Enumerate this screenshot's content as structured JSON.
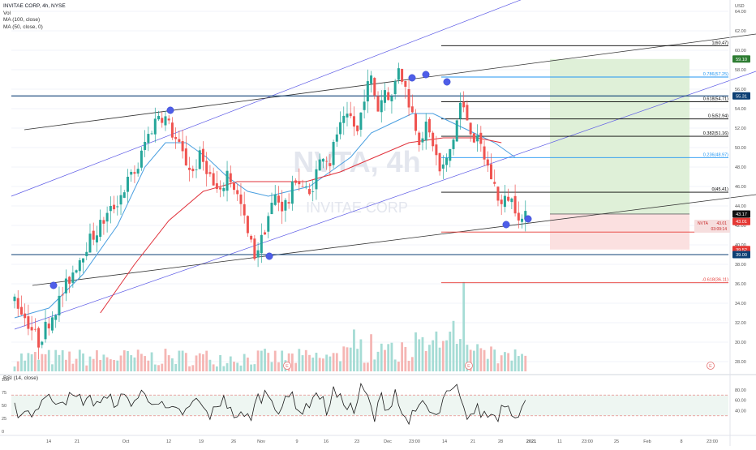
{
  "header": {
    "symbol_line": "INVITAE CORP, 4h, NYSE",
    "vol_label": "Vol",
    "ma100_label": "MA (100, close)",
    "ma50_label": "MA (50, close, 0)",
    "rsi_label": "RSI (14, close)",
    "currency": "USD",
    "watermark_ticker": "NVTA, 4h",
    "watermark_name": "INVITAE CORP"
  },
  "colors": {
    "up": "#26a69a",
    "down": "#ef5350",
    "ma50": "#4a9fe0",
    "ma100": "#e0303a",
    "channel": "#5e5ce6",
    "level": "#0c3f74",
    "fib_black": "#000000",
    "fib_blue": "#2196f3",
    "fib_red": "#e53935",
    "target_zone": "#dff0d8",
    "stop_zone": "#fbe0e0"
  },
  "chart_data": {
    "type": "candlestick",
    "symbol": "INVITAE CORP",
    "timeframe": "4h",
    "exchange": "NYSE",
    "price_axis": {
      "ylim": [
        27.0,
        64.5
      ],
      "ticks": [
        "64.00",
        "62.00",
        "60.00",
        "58.00",
        "56.00",
        "54.00",
        "52.00",
        "50.00",
        "48.00",
        "46.00",
        "44.00",
        "42.00",
        "40.00",
        "38.00",
        "36.00",
        "34.00",
        "32.00",
        "30.00",
        "28.00"
      ]
    },
    "time_axis": {
      "ticks": [
        "14",
        "21",
        "Oct",
        "12",
        "19",
        "26",
        "Nov",
        "9",
        "16",
        "23",
        "Dec",
        "23:00",
        "14",
        "21",
        "28",
        "2021",
        "11",
        "23:00",
        "25",
        "Feb",
        "8",
        "23:00"
      ]
    },
    "price_path": [
      [
        0,
        34.5
      ],
      [
        4,
        32.0
      ],
      [
        7,
        30.0
      ],
      [
        9,
        31.5
      ],
      [
        12,
        33.5
      ],
      [
        15,
        35.8
      ],
      [
        18,
        38.0
      ],
      [
        21,
        40.0
      ],
      [
        24,
        41.5
      ],
      [
        27,
        43.0
      ],
      [
        30,
        44.5
      ],
      [
        33,
        46.5
      ],
      [
        36,
        48.0
      ],
      [
        38,
        50.5
      ],
      [
        40,
        52.0
      ],
      [
        42,
        53.5
      ],
      [
        44,
        53.0
      ],
      [
        46,
        51.5
      ],
      [
        48,
        50.0
      ],
      [
        50,
        48.5
      ],
      [
        52,
        47.5
      ],
      [
        54,
        49.0
      ],
      [
        56,
        48.0
      ],
      [
        58,
        46.0
      ],
      [
        60,
        45.0
      ],
      [
        62,
        47.5
      ],
      [
        64,
        46.0
      ],
      [
        66,
        44.0
      ],
      [
        68,
        41.0
      ],
      [
        70,
        39.0
      ],
      [
        72,
        40.5
      ],
      [
        74,
        43.0
      ],
      [
        76,
        45.0
      ],
      [
        78,
        44.0
      ],
      [
        80,
        44.5
      ],
      [
        82,
        47.0
      ],
      [
        84,
        46.0
      ],
      [
        86,
        45.0
      ],
      [
        88,
        47.5
      ],
      [
        90,
        49.5
      ],
      [
        92,
        48.5
      ],
      [
        94,
        51.5
      ],
      [
        96,
        52.5
      ],
      [
        98,
        53.0
      ],
      [
        100,
        51.5
      ],
      [
        102,
        55.5
      ],
      [
        104,
        57.0
      ],
      [
        106,
        54.0
      ],
      [
        108,
        56.0
      ],
      [
        110,
        55.0
      ],
      [
        112,
        58.5
      ],
      [
        114,
        56.0
      ],
      [
        116,
        53.5
      ],
      [
        118,
        51.0
      ],
      [
        120,
        52.0
      ],
      [
        122,
        50.5
      ],
      [
        124,
        47.5
      ],
      [
        126,
        48.5
      ],
      [
        128,
        51.0
      ],
      [
        130,
        54.5
      ],
      [
        132,
        53.0
      ],
      [
        134,
        51.0
      ],
      [
        136,
        50.0
      ],
      [
        138,
        48.0
      ],
      [
        140,
        46.0
      ],
      [
        142,
        44.0
      ],
      [
        144,
        45.0
      ],
      [
        146,
        44.0
      ],
      [
        148,
        42.5
      ],
      [
        150,
        43.0
      ]
    ],
    "moving_averages": [
      {
        "name": "MA (50, close, 0)",
        "color": "#4a9fe0",
        "points": [
          [
            0,
            32.5
          ],
          [
            10,
            33.5
          ],
          [
            20,
            37.0
          ],
          [
            30,
            42.0
          ],
          [
            38,
            48.0
          ],
          [
            44,
            50.5
          ],
          [
            50,
            50.5
          ],
          [
            56,
            49.0
          ],
          [
            62,
            47.0
          ],
          [
            68,
            45.5
          ],
          [
            74,
            45.0
          ],
          [
            80,
            45.5
          ],
          [
            86,
            46.0
          ],
          [
            92,
            47.5
          ],
          [
            98,
            49.0
          ],
          [
            104,
            51.5
          ],
          [
            110,
            52.5
          ],
          [
            116,
            53.5
          ],
          [
            122,
            53.5
          ],
          [
            128,
            52.5
          ],
          [
            134,
            51.5
          ],
          [
            140,
            50.5
          ],
          [
            146,
            49.0
          ]
        ]
      },
      {
        "name": "MA (100, close)",
        "color": "#e0303a",
        "points": [
          [
            25,
            33.0
          ],
          [
            35,
            38.0
          ],
          [
            45,
            42.5
          ],
          [
            55,
            45.5
          ],
          [
            65,
            46.5
          ],
          [
            75,
            46.5
          ],
          [
            85,
            46.5
          ],
          [
            95,
            47.5
          ],
          [
            105,
            49.0
          ],
          [
            115,
            50.5
          ],
          [
            125,
            51.0
          ],
          [
            135,
            51.0
          ],
          [
            142,
            50.5
          ]
        ]
      }
    ],
    "horizontal_levels": [
      {
        "price": 55.31,
        "label": "55.31",
        "color": "#0c3f74"
      },
      {
        "price": 39.0,
        "label": "39.00",
        "color": "#0c3f74"
      }
    ],
    "fibonacci": [
      {
        "ratio": "1",
        "label": "1(60.47)",
        "price": 60.47,
        "color": "#000000"
      },
      {
        "ratio": "0.786",
        "label": "0.786(57.25)",
        "price": 57.25,
        "color": "#2196f3"
      },
      {
        "ratio": "0.618",
        "label": "0.618(54.71)",
        "price": 54.71,
        "color": "#000000"
      },
      {
        "ratio": "0.5",
        "label": "0.5(52.94)",
        "price": 52.94,
        "color": "#000000"
      },
      {
        "ratio": "0.382",
        "label": "0.382(51.16)",
        "price": 51.16,
        "color": "#000000"
      },
      {
        "ratio": "0.236",
        "label": "0.236(48.97)",
        "price": 48.97,
        "color": "#2196f3"
      },
      {
        "ratio": "0",
        "label": "0(45.41)",
        "price": 45.41,
        "color": "#000000"
      },
      {
        "ratio": "-0.272",
        "label": "-0.272(41.32)",
        "price": 41.32,
        "color": "#e53935"
      },
      {
        "ratio": "-0.618",
        "label": "-0.618(36.11)",
        "price": 36.11,
        "color": "#e53935"
      }
    ],
    "position_tool": {
      "target": 59.1,
      "entry": 43.17,
      "stop": 39.52
    },
    "price_tags": [
      {
        "label": "59.10",
        "price": 59.1,
        "bg": "#2e7d32",
        "fg": "#ffffff"
      },
      {
        "label": "55.31",
        "price": 55.31,
        "bg": "#0c3f74",
        "fg": "#ffffff"
      },
      {
        "label": "43.17",
        "price": 43.17,
        "bg": "#111111",
        "fg": "#ffffff"
      },
      {
        "label": "43.01",
        "price": 42.4,
        "bg": "#e53935",
        "fg": "#ffffff"
      },
      {
        "label": "39.52",
        "price": 39.52,
        "bg": "#e53935",
        "fg": "#ffffff"
      },
      {
        "label": "39.00",
        "price": 39.0,
        "bg": "#0c3f74",
        "fg": "#ffffff"
      }
    ],
    "current_price_tag": {
      "label": "NVTA",
      "price_text": "43.01",
      "countdown": "03:09:14"
    },
    "rsi": {
      "label": "RSI (14, close)",
      "ticks": [
        "100",
        "75",
        "50",
        "25",
        "0"
      ],
      "right_ticks": [
        "80.00",
        "60.00",
        "40.00"
      ],
      "overbought": 70,
      "oversold": 30
    },
    "event_markers": [
      "E",
      "E",
      "E"
    ]
  }
}
